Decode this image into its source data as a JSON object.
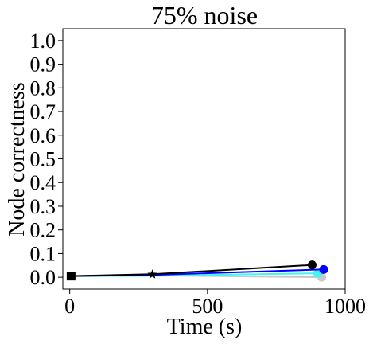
{
  "chart_data": {
    "type": "line",
    "title": "75% noise",
    "xlabel": "Time (s)",
    "ylabel": "Node correctness",
    "xlim": [
      -25,
      1000
    ],
    "ylim": [
      -0.05,
      1.05
    ],
    "xticks": [
      0,
      500,
      1000
    ],
    "yticks": [
      0.0,
      0.1,
      0.2,
      0.3,
      0.4,
      0.5,
      0.6,
      0.7,
      0.8,
      0.9,
      1.0
    ],
    "grid": false,
    "legend": "none",
    "start_point": {
      "x": 5,
      "y": 0.005,
      "marker": "square",
      "color": "#000000"
    },
    "mid_point": {
      "x": 300,
      "y": 0.012,
      "marker": "star",
      "color": "#000000"
    },
    "series": [
      {
        "color": "#c8c8c8",
        "x": [
          5,
          300,
          915
        ],
        "y": [
          0.005,
          0.008,
          0.0
        ]
      },
      {
        "color": "#3ff5f5",
        "x": [
          5,
          300,
          900
        ],
        "y": [
          0.005,
          0.006,
          0.017
        ]
      },
      {
        "color": "#0000ff",
        "x": [
          5,
          300,
          922
        ],
        "y": [
          0.005,
          0.01,
          0.033
        ]
      },
      {
        "color": "#000000",
        "x": [
          5,
          300,
          880
        ],
        "y": [
          0.005,
          0.013,
          0.052
        ]
      }
    ]
  }
}
